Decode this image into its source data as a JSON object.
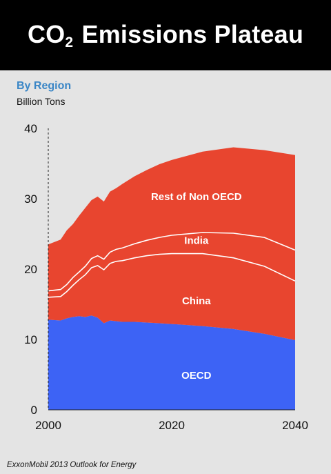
{
  "header": {
    "title_before": "CO",
    "title_sub": "2",
    "title_after": " Emissions Plateau"
  },
  "subtitle": "By Region",
  "units": "Billion Tons",
  "source": "ExxonMobil 2013 Outlook for Energy",
  "colors": {
    "red": "#e8452f",
    "blue": "#3d63f5",
    "separator": "#ffffff",
    "axis": "#222222",
    "background": "#e4e4e4"
  },
  "chart_data": {
    "type": "area",
    "stacked": true,
    "title": "",
    "xlabel": "",
    "ylabel": "Billion Tons",
    "xlim": [
      2000,
      2040
    ],
    "ylim": [
      0,
      40
    ],
    "x_ticks": [
      2000,
      2020,
      2040
    ],
    "y_ticks": [
      0,
      10,
      20,
      30,
      40
    ],
    "grid": false,
    "legend": "inline labels",
    "x": [
      2000,
      2002,
      2003,
      2004,
      2005,
      2006,
      2007,
      2008,
      2009,
      2010,
      2011,
      2012,
      2014,
      2016,
      2018,
      2020,
      2025,
      2030,
      2035,
      2040
    ],
    "series": [
      {
        "name": "OECD",
        "color": "#3d63f5",
        "values": [
          12.8,
          12.7,
          13.0,
          13.2,
          13.3,
          13.2,
          13.4,
          13.1,
          12.3,
          12.7,
          12.6,
          12.5,
          12.5,
          12.4,
          12.3,
          12.2,
          11.9,
          11.5,
          10.8,
          9.9
        ]
      },
      {
        "name": "China",
        "color": "#e8452f",
        "values": [
          3.2,
          3.4,
          3.8,
          4.5,
          5.2,
          6.0,
          6.8,
          7.4,
          7.6,
          8.1,
          8.5,
          8.7,
          9.1,
          9.5,
          9.8,
          10.0,
          10.3,
          10.1,
          9.6,
          8.4
        ]
      },
      {
        "name": "India",
        "color": "#e8452f",
        "values": [
          0.9,
          1.0,
          1.0,
          1.1,
          1.1,
          1.2,
          1.3,
          1.4,
          1.5,
          1.6,
          1.7,
          1.8,
          2.0,
          2.2,
          2.4,
          2.6,
          3.0,
          3.5,
          4.1,
          4.4
        ]
      },
      {
        "name": "Rest of Non OECD",
        "color": "#e8452f",
        "values": [
          6.6,
          7.1,
          7.7,
          7.6,
          8.0,
          8.3,
          8.3,
          8.4,
          8.2,
          8.6,
          8.7,
          9.1,
          9.6,
          10.0,
          10.4,
          10.7,
          11.5,
          12.2,
          12.4,
          13.5
        ]
      }
    ],
    "annotations": [
      {
        "text": "Rest of Non OECD",
        "x": 2024,
        "y": 29.8
      },
      {
        "text": "India",
        "x": 2024,
        "y": 23.6
      },
      {
        "text": "China",
        "x": 2024,
        "y": 15.0
      },
      {
        "text": "OECD",
        "x": 2024,
        "y": 4.4
      }
    ]
  }
}
